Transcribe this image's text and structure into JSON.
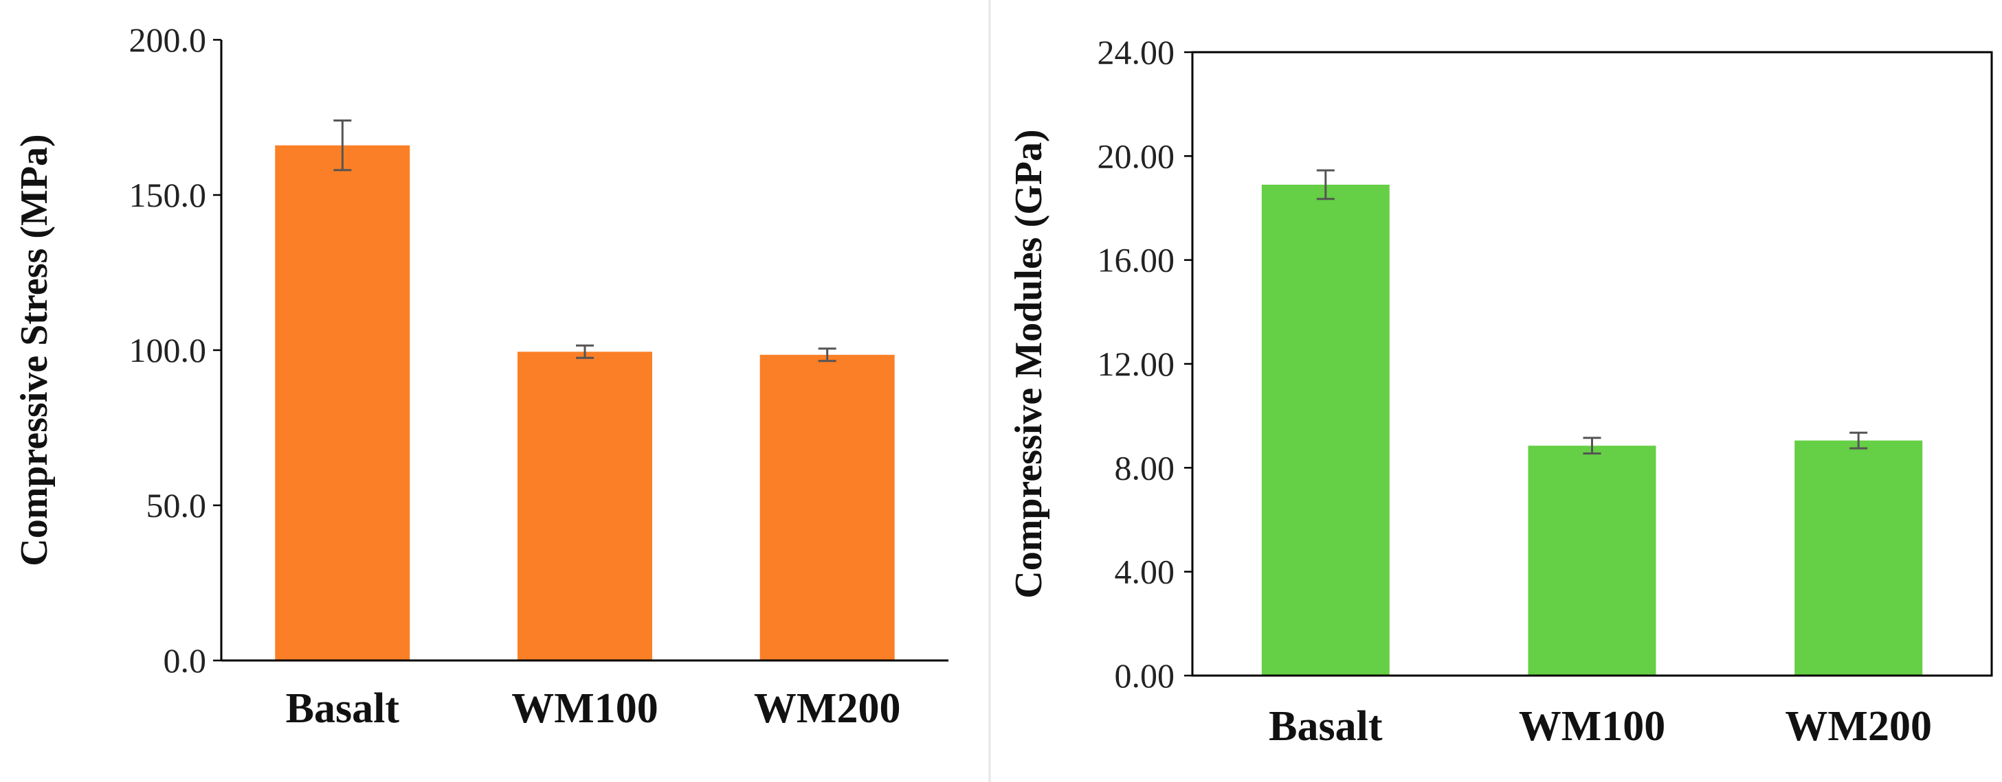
{
  "chart_data": [
    {
      "type": "bar",
      "title": "",
      "xlabel": "",
      "ylabel": "Compressive Stress (MPa)",
      "categories": [
        "Basalt",
        "WM100",
        "WM200"
      ],
      "values": [
        166.0,
        99.5,
        98.5
      ],
      "errors": [
        8.0,
        2.0,
        2.0
      ],
      "ylim": [
        0,
        200
      ],
      "yticks": [
        0,
        50,
        100,
        150,
        200
      ],
      "ytick_labels": [
        "0.0",
        "50.0",
        "100.0",
        "150.0",
        "200.0"
      ],
      "color": "#fb7f26",
      "grid": false,
      "frame": "open-top-right"
    },
    {
      "type": "bar",
      "title": "",
      "xlabel": "",
      "ylabel": "Compressive Modules (GPa)",
      "categories": [
        "Basalt",
        "WM100",
        "WM200"
      ],
      "values": [
        18.9,
        8.85,
        9.05
      ],
      "errors": [
        0.55,
        0.3,
        0.3
      ],
      "ylim": [
        0,
        24
      ],
      "yticks": [
        0,
        4,
        8,
        12,
        16,
        20,
        24
      ],
      "ytick_labels": [
        "0.00",
        "4.00",
        "8.00",
        "12.00",
        "16.00",
        "20.00",
        "24.00"
      ],
      "color": "#65cf45",
      "grid": false,
      "frame": "box"
    }
  ]
}
